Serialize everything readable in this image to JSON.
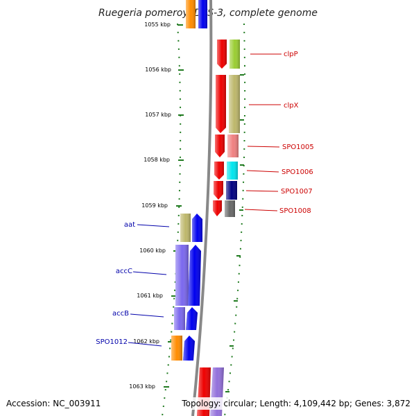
{
  "map": {
    "title": "Ruegeria pomeroyi DSS-3, complete genome",
    "accession": "Accession: NC_003911",
    "summary": "Topology: circular; Length: 4,109,442 bp; Genes: 3,872"
  },
  "colors": {
    "axis": "#888888",
    "tick": "#1f7a1f",
    "forward_label": "#cc0000",
    "reverse_label": "#0000aa",
    "forward_gene": "#ee0000",
    "reverse_gene": "#0000ee"
  },
  "ticks": [
    "1055 kbp",
    "1056 kbp",
    "1057 kbp",
    "1058 kbp",
    "1059 kbp",
    "1060 kbp",
    "1061 kbp",
    "1062 kbp",
    "1063 kbp"
  ],
  "forward_genes": [
    {
      "label": "clpP",
      "cog_color": "#9acd32"
    },
    {
      "label": "clpX",
      "cog_color": "#bdb76b"
    },
    {
      "label": "SPO1005",
      "cog_color": "#f08080"
    },
    {
      "label": "SPO1006",
      "cog_color": "#00e5ee"
    },
    {
      "label": "SPO1007",
      "cog_color": "#000080"
    },
    {
      "label": "SPO1008",
      "cog_color": "#696969"
    }
  ],
  "reverse_genes": [
    {
      "label": "aat",
      "cog_color": "#bdb76b"
    },
    {
      "label": "accC",
      "cog_color": "#7b68ee"
    },
    {
      "label": "accB",
      "cog_color": "#7b68ee"
    },
    {
      "label": "SPO1012",
      "cog_color": "#ff8c00"
    }
  ],
  "partial_forward": {
    "cog_color": "#9370db"
  },
  "partial_reverse": {
    "cog_color": "#ff8c00"
  }
}
